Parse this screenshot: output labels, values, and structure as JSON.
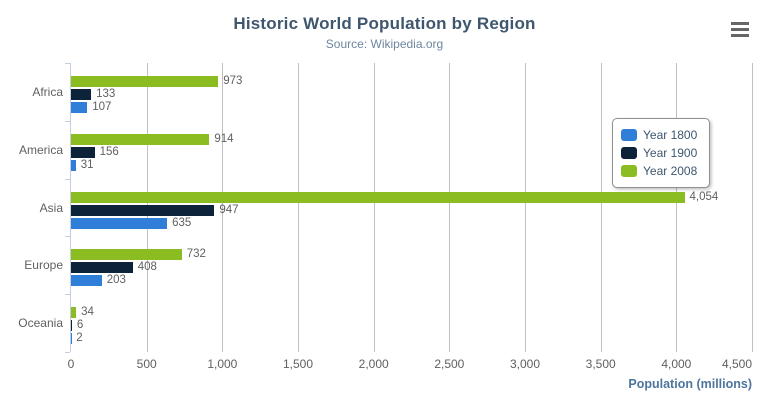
{
  "header": {
    "title": "Historic World Population by Region",
    "subtitle": "Source: Wikipedia.org"
  },
  "export_menu": {
    "icon": "hamburger-menu-icon"
  },
  "chart_data": {
    "type": "bar",
    "orientation": "horizontal",
    "title": "Historic World Population by Region",
    "subtitle": "Source: Wikipedia.org",
    "categories": [
      "Africa",
      "America",
      "Asia",
      "Europe",
      "Oceania"
    ],
    "series": [
      {
        "name": "Year 1800",
        "color": "#2f7ed8",
        "values": [
          107,
          31,
          635,
          203,
          2
        ]
      },
      {
        "name": "Year 1900",
        "color": "#0d233a",
        "values": [
          133,
          156,
          947,
          408,
          6
        ]
      },
      {
        "name": "Year 2008",
        "color": "#8bbc21",
        "values": [
          973,
          914,
          4054,
          732,
          34
        ]
      }
    ],
    "bar_visual_order_top_to_bottom": [
      "Year 2008",
      "Year 1900",
      "Year 1800"
    ],
    "xlabel": "Population (millions)",
    "ylabel": "",
    "xlim": [
      0,
      4500
    ],
    "x_ticks": [
      0,
      500,
      1000,
      1500,
      2000,
      2500,
      3000,
      3500,
      4000,
      4500
    ],
    "grid": true,
    "data_labels": true,
    "legend_position": "right",
    "colors": {
      "title": "#3E576F",
      "subtitle": "#6D869F",
      "gridline": "#C0C0C0",
      "axis_line": "#C0D0E0",
      "labels": "#606060",
      "axis_title": "#4d759e",
      "legend_border": "#909090"
    }
  }
}
